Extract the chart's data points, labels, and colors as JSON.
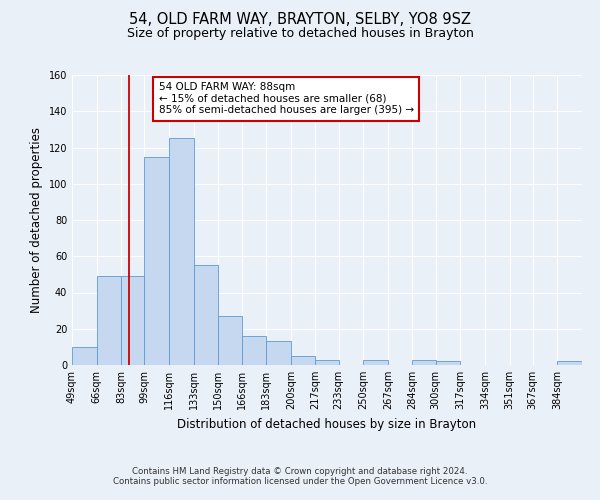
{
  "title": "54, OLD FARM WAY, BRAYTON, SELBY, YO8 9SZ",
  "subtitle": "Size of property relative to detached houses in Brayton",
  "xlabel": "Distribution of detached houses by size in Brayton",
  "ylabel": "Number of detached properties",
  "bin_labels": [
    "49sqm",
    "66sqm",
    "83sqm",
    "99sqm",
    "116sqm",
    "133sqm",
    "150sqm",
    "166sqm",
    "183sqm",
    "200sqm",
    "217sqm",
    "233sqm",
    "250sqm",
    "267sqm",
    "284sqm",
    "300sqm",
    "317sqm",
    "334sqm",
    "351sqm",
    "367sqm",
    "384sqm"
  ],
  "bar_heights": [
    10,
    49,
    49,
    115,
    125,
    55,
    27,
    16,
    13,
    5,
    3,
    0,
    3,
    0,
    3,
    2,
    0,
    0,
    0,
    0,
    2
  ],
  "bar_color": "#c5d8f0",
  "bar_edge_color": "#5b9bd5",
  "vline_x": 88,
  "vline_color": "#cc0000",
  "annotation_line1": "54 OLD FARM WAY: 88sqm",
  "annotation_line2": "← 15% of detached houses are smaller (68)",
  "annotation_line3": "85% of semi-detached houses are larger (395) →",
  "annotation_box_color": "#ffffff",
  "annotation_box_edge_color": "#cc0000",
  "ylim": [
    0,
    160
  ],
  "yticks": [
    0,
    20,
    40,
    60,
    80,
    100,
    120,
    140,
    160
  ],
  "bin_edges": [
    49,
    66,
    83,
    99,
    116,
    133,
    150,
    166,
    183,
    200,
    217,
    233,
    250,
    267,
    284,
    300,
    317,
    334,
    351,
    367,
    384,
    401
  ],
  "footer1": "Contains HM Land Registry data © Crown copyright and database right 2024.",
  "footer2": "Contains public sector information licensed under the Open Government Licence v3.0.",
  "bg_color": "#eaf0f8",
  "grid_color": "#ffffff",
  "title_fontsize": 10.5,
  "subtitle_fontsize": 9,
  "tick_fontsize": 7,
  "ylabel_fontsize": 8.5,
  "xlabel_fontsize": 8.5,
  "annotation_fontsize": 7.5
}
